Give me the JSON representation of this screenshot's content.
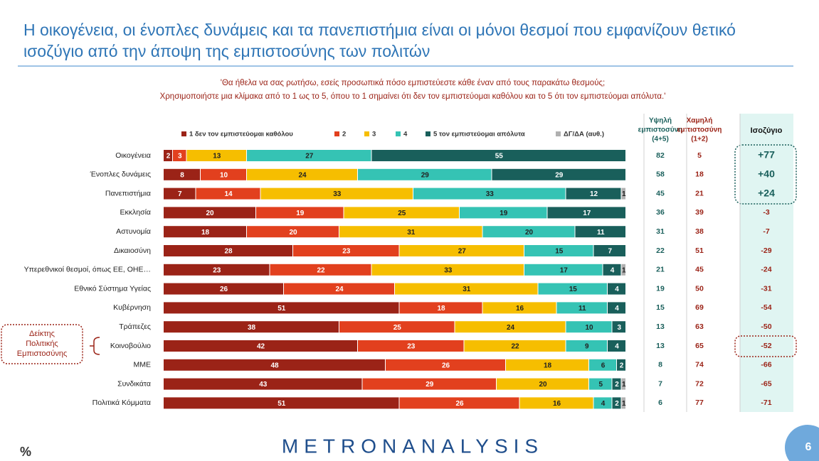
{
  "chart_data": {
    "type": "stacked_bar_horizontal",
    "title": [
      "Η οικογένεια, οι ένοπλες δυνάμεις και τα πανεπιστήμια είναι οι μόνοι θεσμοί που εμφανίζουν θετικό",
      "ισοζύγιο από την άποψη της εμπιστοσύνης των πολιτών"
    ],
    "subtitle": [
      "'Θα ήθελα να σας ρωτήσω, εσείς προσωπικά πόσο εμπιστεύεστε κάθε έναν από τους παρακάτω θεσμούς;",
      "Χρησιμοποιήστε μια κλίμακα από το 1 ως το 5, όπου το 1 σημαίνει ότι δεν τον εμπιστεύομαι καθόλου και το 5 ότι τον εμπιστεύομαι απόλυτα.'"
    ],
    "categories": [
      "Οικογένεια",
      "Ένοπλες δυνάμεις",
      "Πανεπιστήμια",
      "Εκκλησία",
      "Αστυνομία",
      "Δικαιοσύνη",
      "Υπερεθνικοί θεσμοί, όπως ΕΕ, ΟΗΕ…",
      "Εθνικό Σύστημα Υγείας",
      "Κυβέρνηση",
      "Τράπεζες",
      "Κοινοβούλιο",
      "ΜΜΕ",
      "Συνδικάτα",
      "Πολιτικά Κόμματα"
    ],
    "xlim": [
      0,
      100
    ],
    "series": [
      {
        "name": "1  δεν τον εμπιστεύομαι καθόλου",
        "color": "#9b2317",
        "values": [
          2,
          8,
          7,
          20,
          18,
          28,
          23,
          26,
          51,
          38,
          42,
          48,
          43,
          51
        ]
      },
      {
        "name": "2",
        "color": "#e2401e",
        "values": [
          3,
          10,
          14,
          19,
          20,
          23,
          22,
          24,
          18,
          25,
          23,
          26,
          29,
          26
        ]
      },
      {
        "name": "3",
        "color": "#f6be00",
        "values": [
          13,
          24,
          33,
          25,
          31,
          27,
          33,
          31,
          16,
          24,
          22,
          18,
          20,
          16
        ]
      },
      {
        "name": "4",
        "color": "#35c3b4",
        "values": [
          27,
          29,
          33,
          19,
          20,
          15,
          17,
          15,
          11,
          10,
          9,
          6,
          5,
          4
        ]
      },
      {
        "name": "5 τον εμπιστεύομαι απόλυτα",
        "color": "#195f5b",
        "values": [
          55,
          29,
          12,
          17,
          11,
          7,
          4,
          4,
          4,
          3,
          4,
          2,
          2,
          2
        ]
      },
      {
        "name": "ΔΓ/ΔΑ (αυθ.)",
        "color": "#b0b0b0",
        "values": [
          null,
          null,
          1,
          null,
          null,
          null,
          1,
          null,
          null,
          null,
          null,
          null,
          1,
          1
        ]
      }
    ],
    "high": {
      "header": [
        "Υψηλή",
        "εμπιστοσύνη",
        "(4+5)"
      ],
      "values": [
        82,
        58,
        45,
        36,
        31,
        22,
        21,
        19,
        15,
        13,
        13,
        8,
        7,
        6
      ]
    },
    "low": {
      "header": [
        "Χαμηλή",
        "εμπιστοσύνη",
        "(1+2)"
      ],
      "values": [
        5,
        18,
        21,
        39,
        38,
        51,
        45,
        50,
        69,
        63,
        65,
        74,
        72,
        77
      ]
    },
    "balance": {
      "header": "Ισοζύγιο",
      "values": [
        77,
        40,
        24,
        -3,
        -7,
        -29,
        -24,
        -31,
        -54,
        -50,
        -52,
        -66,
        -65,
        -71
      ],
      "value_labels": [
        "+77",
        "+40",
        "+24",
        "-3",
        "-7",
        "-29",
        "-24",
        "-31",
        "-54",
        "-50",
        "-52",
        "-66",
        "-65",
        "-71"
      ]
    },
    "side_label": [
      "Δείκτης",
      "Πολιτικής",
      "Εμπιστοσύνης"
    ],
    "unit": "%",
    "brand": "METRONANALYSIS",
    "page": "6"
  }
}
